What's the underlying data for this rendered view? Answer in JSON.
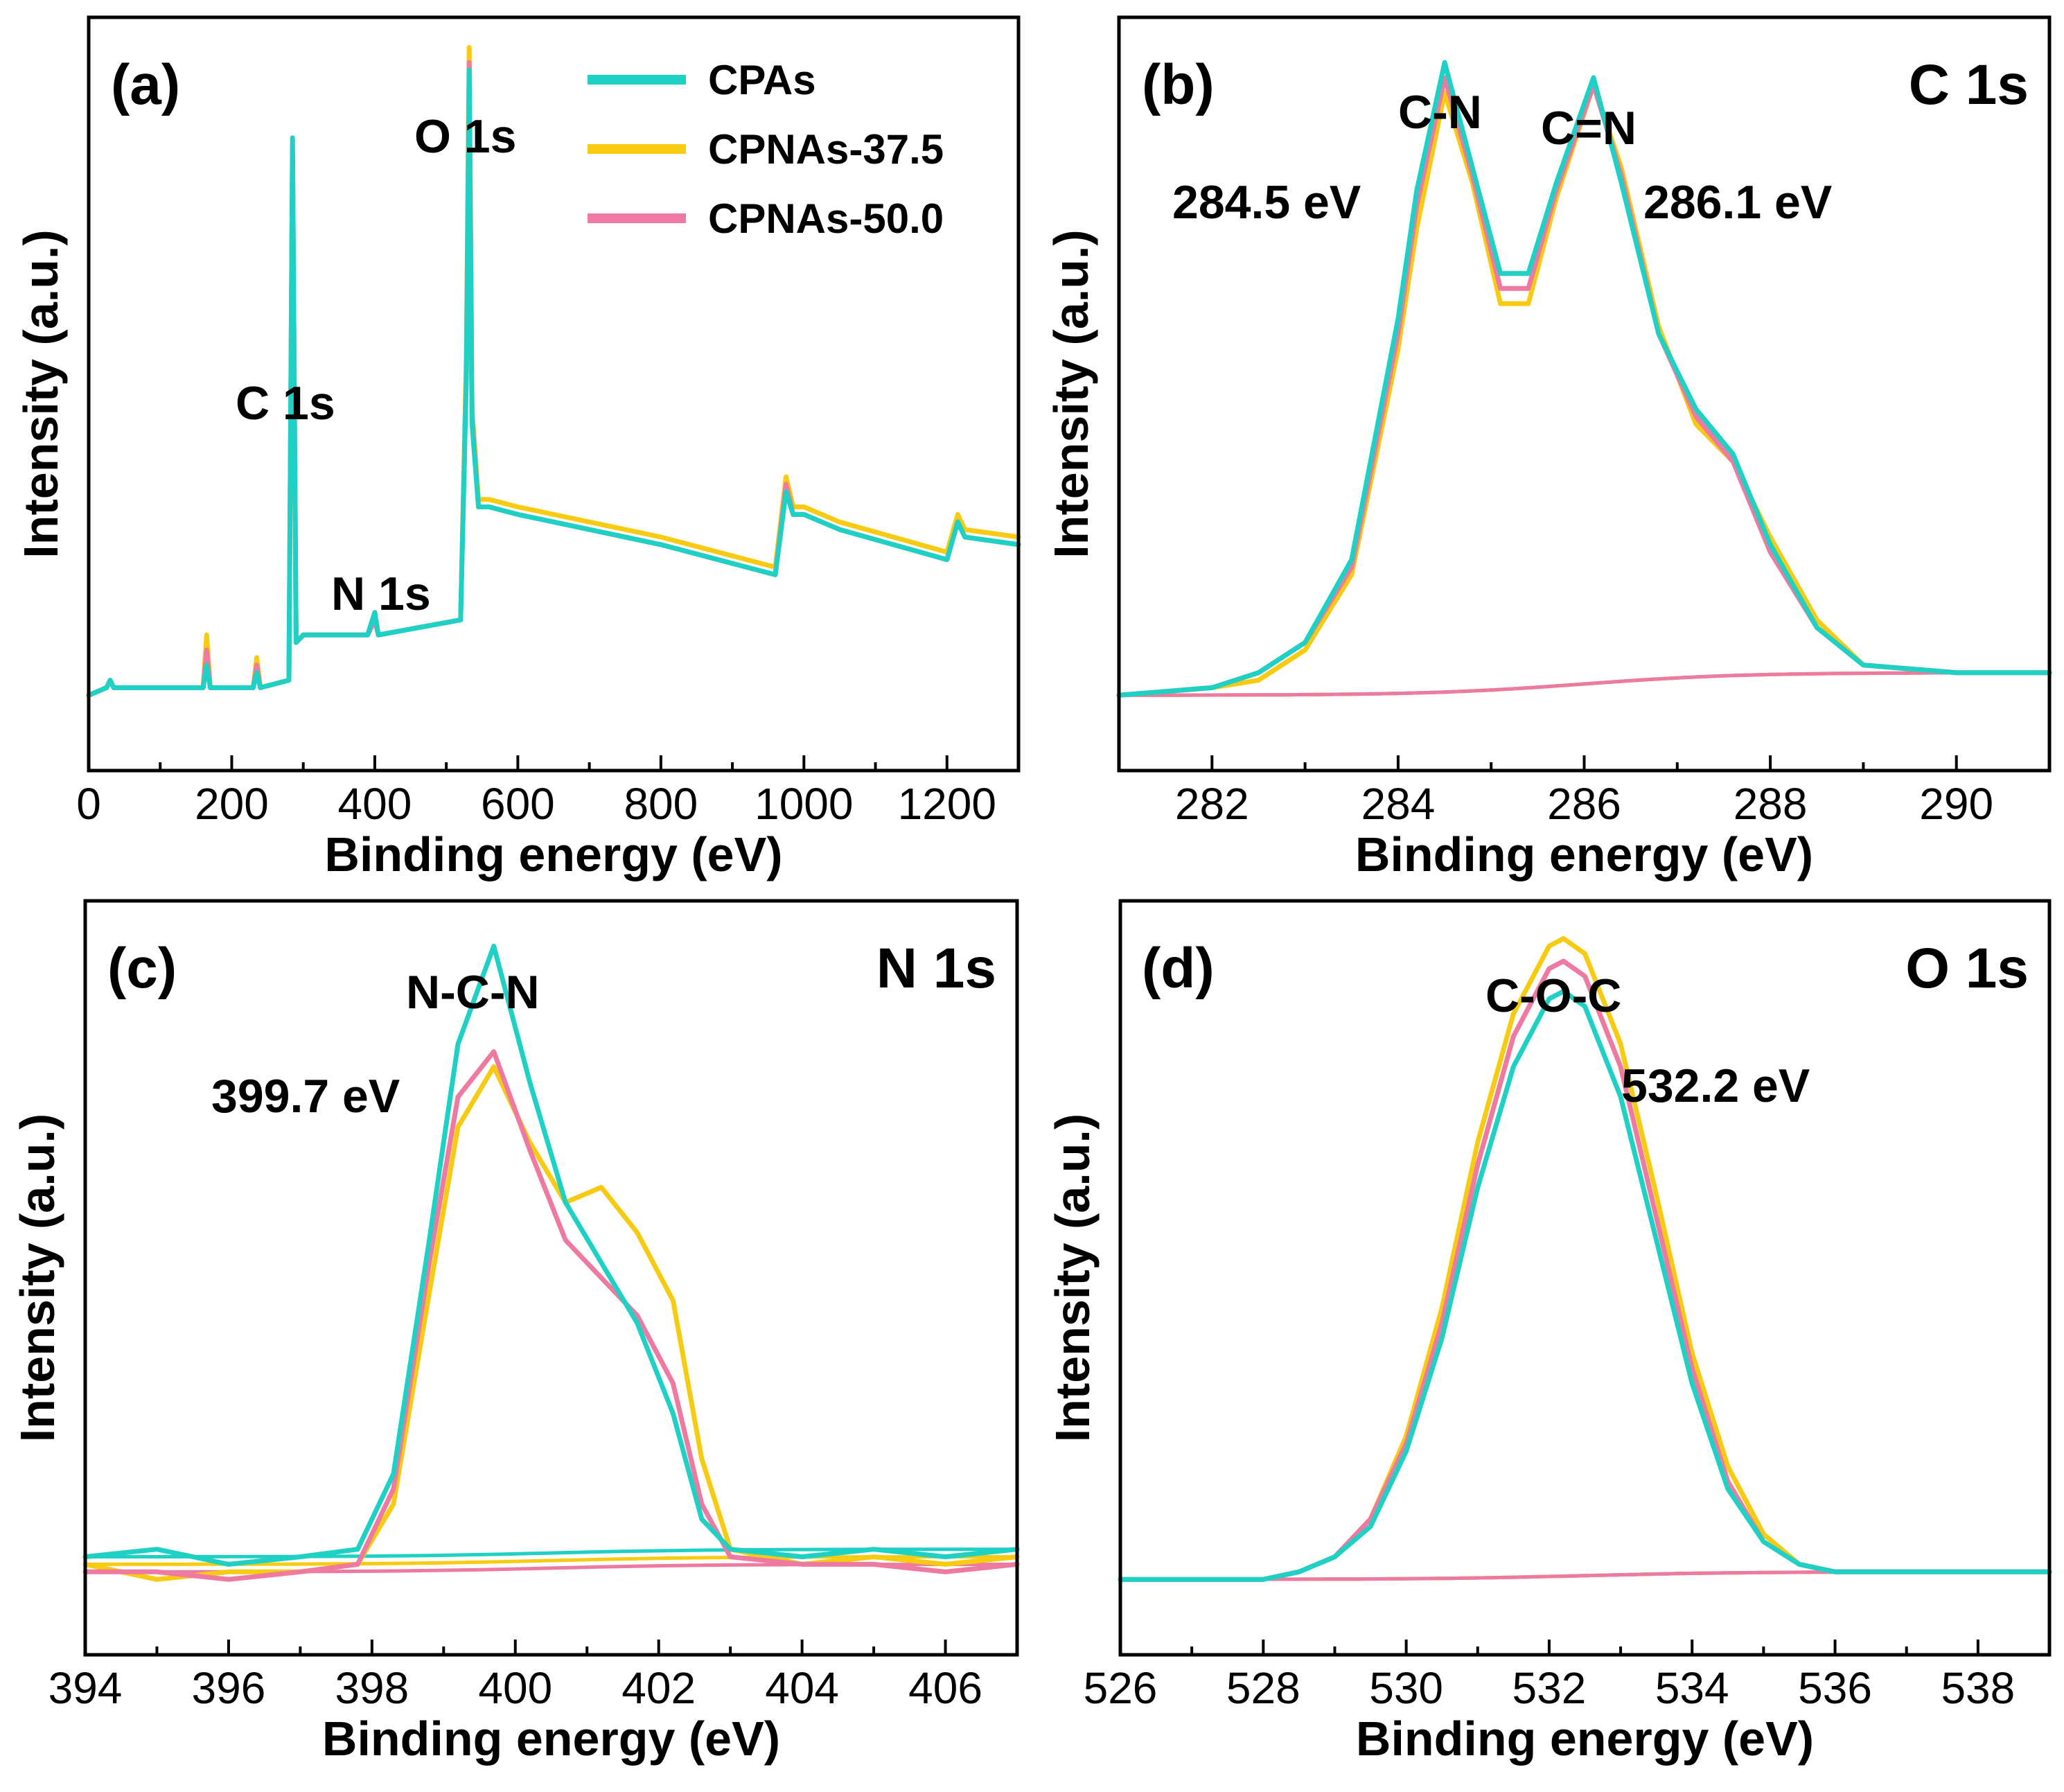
{
  "colors": {
    "CPAs": "#1ed1c4",
    "CPNAs-37.5": "#f6cb12",
    "CPNAs-50.0": "#ee7aa2"
  },
  "legend": [
    "CPAs",
    "CPNAs-37.5",
    "CPNAs-50.0"
  ],
  "chart_data": [
    {
      "type": "line",
      "panel": "(a)",
      "title": "",
      "xlabel": "Binding energy (eV)",
      "ylabel": "Intensity (a.u.)",
      "xlim": [
        0,
        1300
      ],
      "xticks": [
        "0",
        "200",
        "400",
        "600",
        "800",
        "1000",
        "1200"
      ],
      "ylim": [
        0,
        1.0
      ],
      "annotations": [
        "C 1s",
        "N 1s",
        "O 1s"
      ],
      "series": [
        {
          "name": "CPAs",
          "x": [
            0,
            25,
            30,
            35,
            160,
            165,
            170,
            175,
            230,
            235,
            240,
            280,
            285,
            290,
            300,
            310,
            390,
            400,
            405,
            520,
            528,
            532,
            536,
            545,
            560,
            600,
            800,
            960,
            975,
            985,
            1000,
            1050,
            1200,
            1215,
            1225,
            1300
          ],
          "y": [
            0.1,
            0.11,
            0.12,
            0.11,
            0.11,
            0.14,
            0.11,
            0.11,
            0.11,
            0.13,
            0.11,
            0.12,
            0.84,
            0.17,
            0.18,
            0.18,
            0.18,
            0.21,
            0.18,
            0.2,
            0.52,
            0.93,
            0.46,
            0.35,
            0.35,
            0.34,
            0.3,
            0.26,
            0.37,
            0.34,
            0.34,
            0.32,
            0.28,
            0.33,
            0.31,
            0.3
          ]
        },
        {
          "name": "CPNAs-37.5",
          "x": [
            0,
            25,
            30,
            35,
            160,
            165,
            170,
            175,
            230,
            235,
            240,
            280,
            285,
            290,
            300,
            310,
            390,
            400,
            405,
            520,
            528,
            532,
            536,
            545,
            560,
            600,
            800,
            960,
            975,
            985,
            1000,
            1050,
            1200,
            1215,
            1225,
            1300
          ],
          "y": [
            0.1,
            0.11,
            0.12,
            0.11,
            0.11,
            0.18,
            0.11,
            0.11,
            0.11,
            0.15,
            0.11,
            0.12,
            0.82,
            0.17,
            0.18,
            0.18,
            0.18,
            0.2,
            0.18,
            0.2,
            0.55,
            0.96,
            0.48,
            0.36,
            0.36,
            0.35,
            0.31,
            0.27,
            0.39,
            0.35,
            0.35,
            0.33,
            0.29,
            0.34,
            0.32,
            0.31
          ]
        },
        {
          "name": "CPNAs-50.0",
          "x": [
            0,
            25,
            30,
            35,
            160,
            165,
            170,
            175,
            230,
            235,
            240,
            280,
            285,
            290,
            300,
            310,
            390,
            400,
            405,
            520,
            528,
            532,
            536,
            545,
            560,
            600,
            800,
            960,
            975,
            985,
            1000,
            1050,
            1200,
            1215,
            1225,
            1300
          ],
          "y": [
            0.1,
            0.11,
            0.12,
            0.11,
            0.11,
            0.16,
            0.11,
            0.11,
            0.11,
            0.14,
            0.11,
            0.12,
            0.83,
            0.17,
            0.18,
            0.18,
            0.18,
            0.2,
            0.18,
            0.2,
            0.53,
            0.94,
            0.47,
            0.35,
            0.35,
            0.34,
            0.3,
            0.26,
            0.38,
            0.34,
            0.34,
            0.32,
            0.28,
            0.33,
            0.31,
            0.3
          ]
        }
      ]
    },
    {
      "type": "line",
      "panel": "(b)",
      "title": "C 1s",
      "xlabel": "Binding energy (eV)",
      "ylabel": "Intensity (a.u.)",
      "xlim": [
        281,
        291
      ],
      "xticks": [
        "282",
        "284",
        "286",
        "288",
        "290"
      ],
      "ylim": [
        0,
        1.0
      ],
      "annotations": [
        "C-N",
        "C=N",
        "284.5 eV",
        "286.1 eV"
      ],
      "series": [
        {
          "name": "CPAs",
          "x": [
            281,
            282,
            282.5,
            283,
            283.5,
            284,
            284.2,
            284.5,
            284.8,
            285.1,
            285.4,
            285.7,
            286.1,
            286.4,
            286.8,
            287.2,
            287.6,
            288,
            288.5,
            289,
            290,
            291
          ],
          "y": [
            0.1,
            0.11,
            0.13,
            0.17,
            0.28,
            0.6,
            0.77,
            0.94,
            0.8,
            0.66,
            0.66,
            0.78,
            0.92,
            0.78,
            0.58,
            0.48,
            0.42,
            0.3,
            0.19,
            0.14,
            0.13,
            0.13
          ]
        },
        {
          "name": "CPNAs-37.5",
          "x": [
            281,
            282,
            282.5,
            283,
            283.5,
            284,
            284.2,
            284.5,
            284.8,
            285.1,
            285.4,
            285.7,
            286.1,
            286.4,
            286.8,
            287.2,
            287.6,
            288,
            288.5,
            289,
            290,
            291
          ],
          "y": [
            0.1,
            0.11,
            0.12,
            0.16,
            0.26,
            0.56,
            0.72,
            0.9,
            0.78,
            0.62,
            0.62,
            0.76,
            0.91,
            0.8,
            0.59,
            0.46,
            0.41,
            0.31,
            0.2,
            0.14,
            0.13,
            0.13
          ]
        },
        {
          "name": "CPNAs-50.0",
          "x": [
            281,
            282,
            282.5,
            283,
            283.5,
            284,
            284.2,
            284.5,
            284.8,
            285.1,
            285.4,
            285.7,
            286.1,
            286.4,
            286.8,
            287.2,
            287.6,
            288,
            288.5,
            289,
            290,
            291
          ],
          "y": [
            0.1,
            0.11,
            0.13,
            0.17,
            0.27,
            0.58,
            0.75,
            0.92,
            0.79,
            0.64,
            0.64,
            0.77,
            0.91,
            0.79,
            0.58,
            0.47,
            0.41,
            0.29,
            0.19,
            0.14,
            0.13,
            0.13
          ]
        }
      ]
    },
    {
      "type": "line",
      "panel": "(c)",
      "title": "N 1s",
      "xlabel": "Binding energy (eV)",
      "ylabel": "Intensity (a.u.)",
      "xlim": [
        394,
        407
      ],
      "xticks": [
        "394",
        "396",
        "398",
        "400",
        "402",
        "404",
        "406"
      ],
      "ylim": [
        0,
        1.0
      ],
      "annotations": [
        "N-C-N",
        "399.7 eV"
      ],
      "series": [
        {
          "name": "CPAs",
          "x": [
            394,
            395,
            396,
            397,
            397.8,
            398.3,
            398.8,
            399.2,
            399.7,
            400.2,
            400.7,
            401.2,
            401.7,
            402.2,
            402.6,
            403,
            404,
            405,
            406,
            407
          ],
          "y": [
            0.13,
            0.14,
            0.12,
            0.13,
            0.14,
            0.24,
            0.55,
            0.81,
            0.94,
            0.76,
            0.6,
            0.52,
            0.44,
            0.32,
            0.18,
            0.14,
            0.13,
            0.14,
            0.13,
            0.14
          ]
        },
        {
          "name": "CPNAs-37.5",
          "x": [
            394,
            395,
            396,
            397,
            397.8,
            398.3,
            398.8,
            399.2,
            399.7,
            400.2,
            400.7,
            401.2,
            401.7,
            402.2,
            402.6,
            403,
            404,
            405,
            406,
            407
          ],
          "y": [
            0.12,
            0.1,
            0.11,
            0.11,
            0.12,
            0.2,
            0.48,
            0.7,
            0.78,
            0.68,
            0.6,
            0.62,
            0.56,
            0.47,
            0.26,
            0.14,
            0.12,
            0.13,
            0.12,
            0.13
          ]
        },
        {
          "name": "CPNAs-50.0",
          "x": [
            394,
            395,
            396,
            397,
            397.8,
            398.3,
            398.8,
            399.2,
            399.7,
            400.2,
            400.7,
            401.2,
            401.7,
            402.2,
            402.6,
            403,
            404,
            405,
            406,
            407
          ],
          "y": [
            0.11,
            0.11,
            0.1,
            0.11,
            0.12,
            0.22,
            0.52,
            0.74,
            0.8,
            0.67,
            0.55,
            0.5,
            0.45,
            0.36,
            0.2,
            0.13,
            0.12,
            0.12,
            0.11,
            0.12
          ]
        }
      ]
    },
    {
      "type": "line",
      "panel": "(d)",
      "title": "O 1s",
      "xlabel": "Binding energy (eV)",
      "ylabel": "Intensity (a.u.)",
      "xlim": [
        526,
        539
      ],
      "xticks": [
        "526",
        "528",
        "530",
        "532",
        "534",
        "536",
        "538"
      ],
      "ylim": [
        0,
        1.0
      ],
      "annotations": [
        "C-O-C",
        "532.2 eV"
      ],
      "series": [
        {
          "name": "CPAs",
          "x": [
            526,
            527,
            528,
            528.5,
            529,
            529.5,
            530,
            530.5,
            531,
            531.5,
            532,
            532.2,
            532.5,
            533,
            533.5,
            534,
            534.5,
            535,
            535.5,
            536,
            537,
            538,
            539
          ],
          "y": [
            0.1,
            0.1,
            0.1,
            0.11,
            0.13,
            0.17,
            0.27,
            0.42,
            0.62,
            0.78,
            0.87,
            0.88,
            0.86,
            0.74,
            0.55,
            0.36,
            0.22,
            0.15,
            0.12,
            0.11,
            0.11,
            0.11,
            0.11
          ]
        },
        {
          "name": "CPNAs-37.5",
          "x": [
            526,
            527,
            528,
            528.5,
            529,
            529.5,
            530,
            530.5,
            531,
            531.5,
            532,
            532.2,
            532.5,
            533,
            533.5,
            534,
            534.5,
            535,
            535.5,
            536,
            537,
            538,
            539
          ],
          "y": [
            0.1,
            0.1,
            0.1,
            0.11,
            0.13,
            0.18,
            0.29,
            0.46,
            0.68,
            0.85,
            0.94,
            0.95,
            0.93,
            0.81,
            0.61,
            0.4,
            0.25,
            0.16,
            0.12,
            0.11,
            0.11,
            0.11,
            0.11
          ]
        },
        {
          "name": "CPNAs-50.0",
          "x": [
            526,
            527,
            528,
            528.5,
            529,
            529.5,
            530,
            530.5,
            531,
            531.5,
            532,
            532.2,
            532.5,
            533,
            533.5,
            534,
            534.5,
            535,
            535.5,
            536,
            537,
            538,
            539
          ],
          "y": [
            0.1,
            0.1,
            0.1,
            0.11,
            0.13,
            0.18,
            0.28,
            0.44,
            0.65,
            0.82,
            0.91,
            0.92,
            0.9,
            0.78,
            0.58,
            0.38,
            0.23,
            0.15,
            0.12,
            0.11,
            0.11,
            0.11,
            0.11
          ]
        }
      ]
    }
  ]
}
